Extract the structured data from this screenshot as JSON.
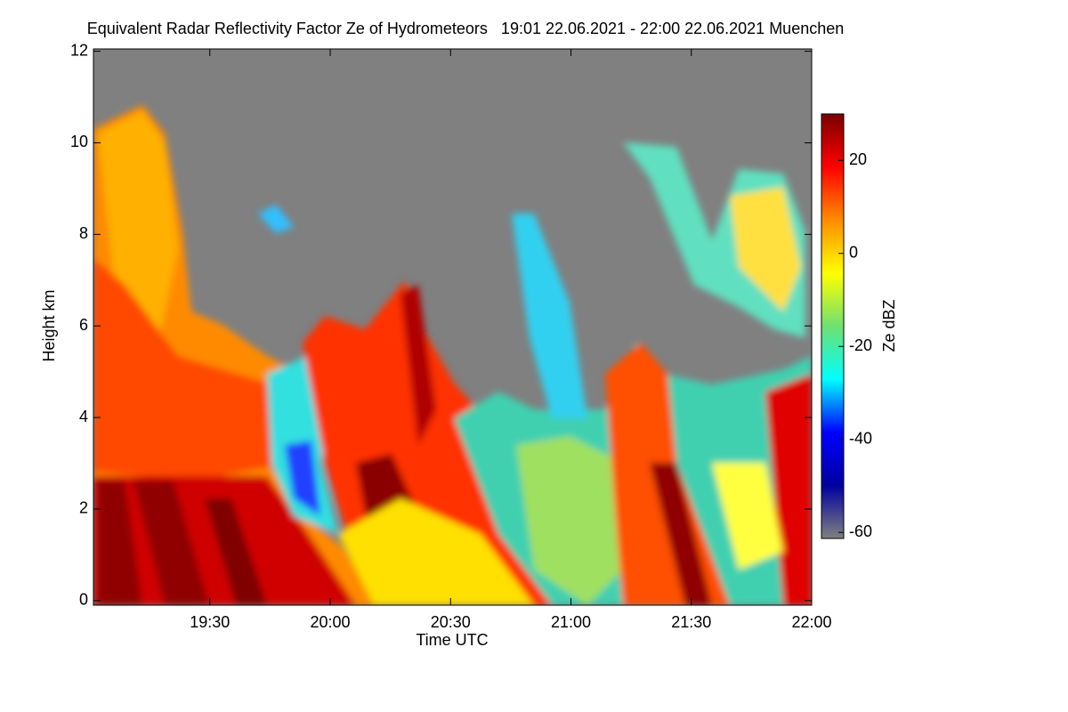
{
  "chart_data": {
    "type": "heatmap",
    "title": "Equivalent Radar Reflectivity Factor Ze of Hydrometeors   19:01 22.06.2021 - 22:00 22.06.2021 Muenchen",
    "xlabel": "Time UTC",
    "ylabel": "Height km",
    "colorbar_label": "Ze dBZ",
    "xlim": [
      1,
      180
    ],
    "xticks": [
      {
        "value": 30,
        "label": "19:30"
      },
      {
        "value": 60,
        "label": "20:00"
      },
      {
        "value": 90,
        "label": "20:30"
      },
      {
        "value": 120,
        "label": "21:00"
      },
      {
        "value": 150,
        "label": "21:30"
      },
      {
        "value": 180,
        "label": "22:00"
      }
    ],
    "ylim": [
      -0.1,
      12.05
    ],
    "yticks": [
      0,
      2,
      4,
      6,
      8,
      10,
      12
    ],
    "clim": [
      -61.3,
      30
    ],
    "cticks": [
      -60,
      -40,
      -20,
      0,
      20
    ],
    "colormap": [
      "#808080",
      "#0000a0",
      "#0000ff",
      "#00ffff",
      "#70e070",
      "#ffff00",
      "#ff8c00",
      "#ff0000",
      "#7a0000"
    ]
  }
}
